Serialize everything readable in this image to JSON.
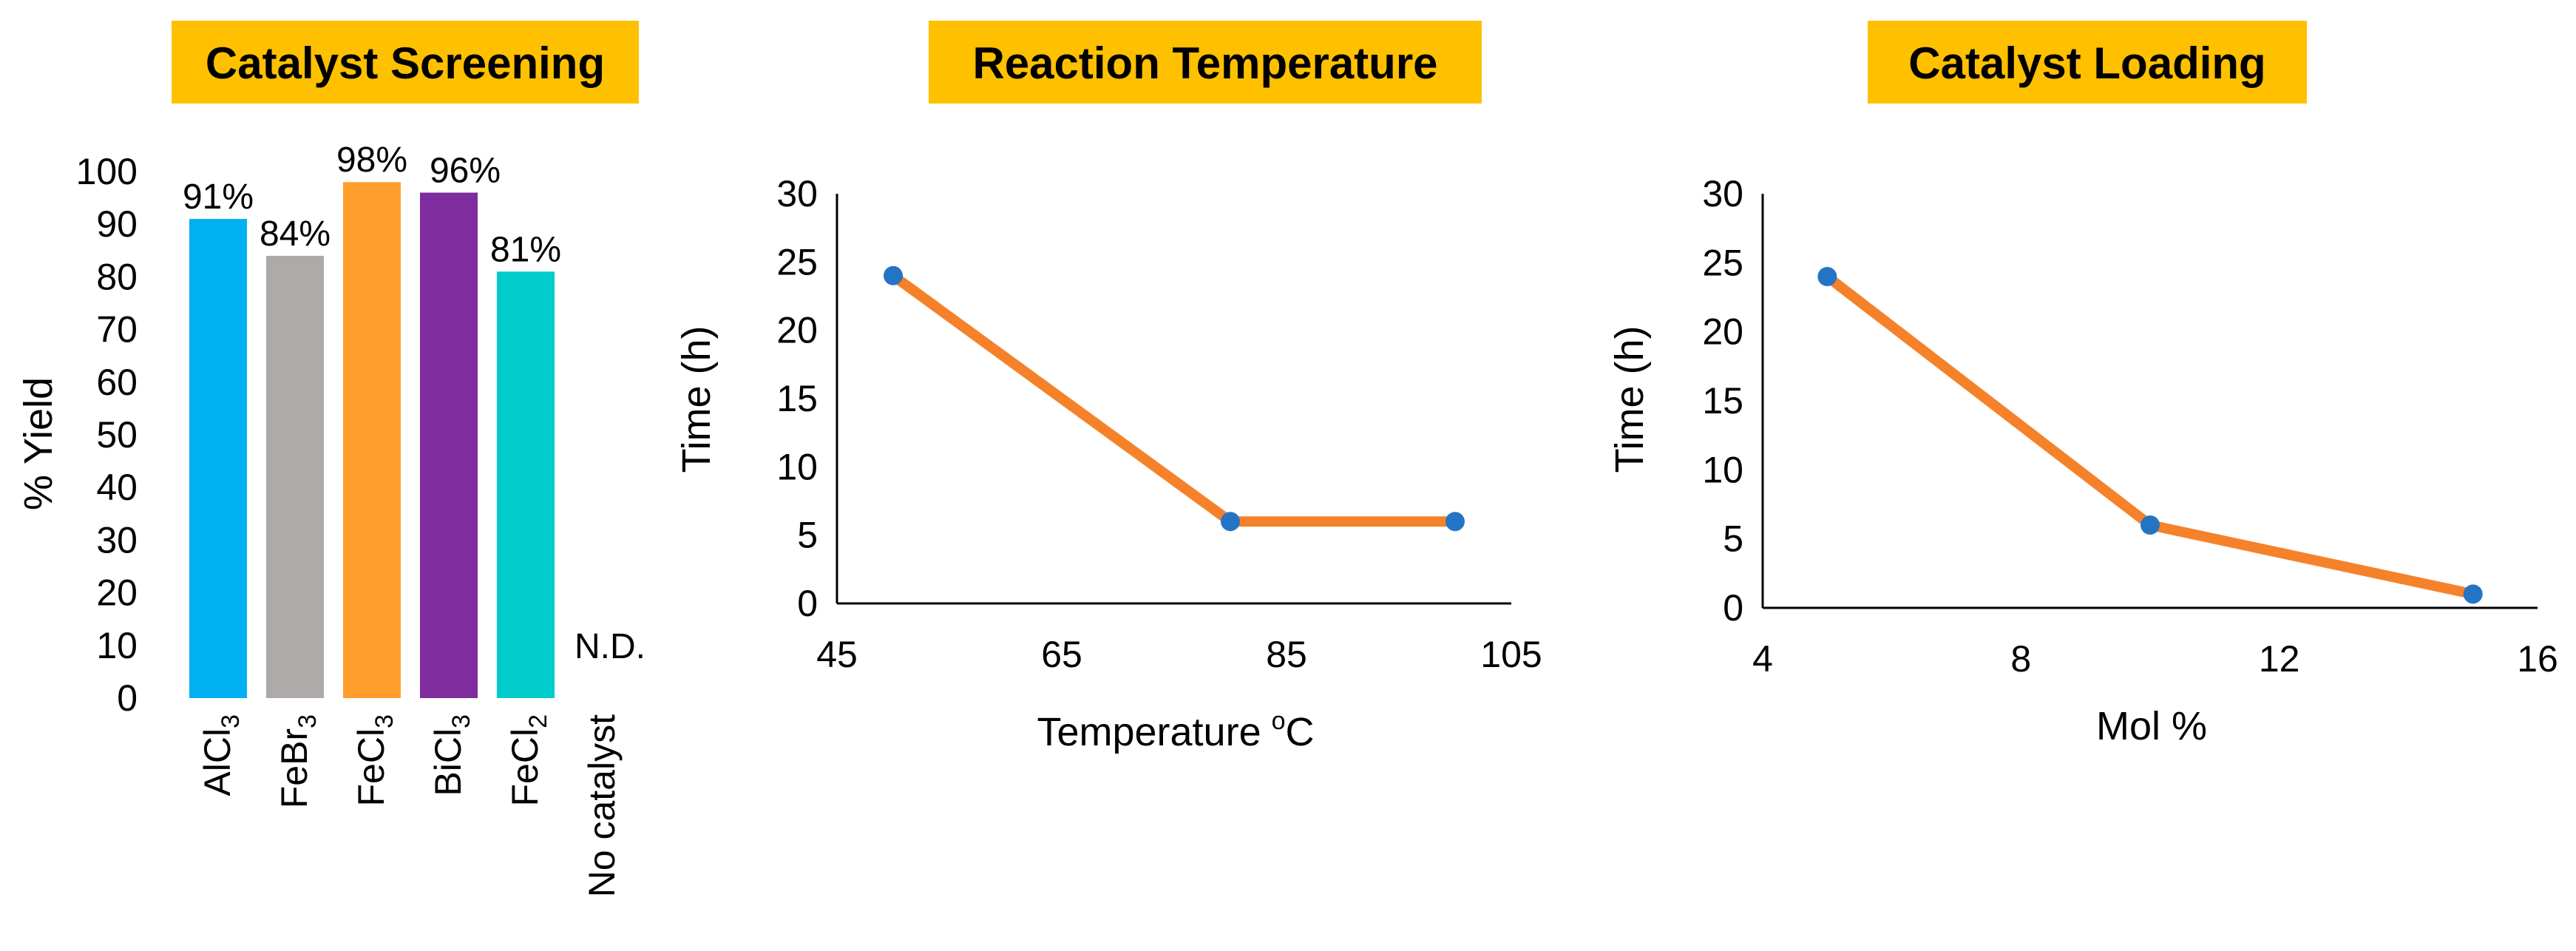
{
  "colors": {
    "title_box": "#FFC000",
    "line": "#F5822A",
    "marker": "#2474C6"
  },
  "chart_data": [
    {
      "type": "bar",
      "title": "Catalyst Screening",
      "xlabel": "",
      "ylabel": "% Yield",
      "ylim": [
        0,
        100
      ],
      "yticks": [
        "0",
        "10",
        "20",
        "30",
        "40",
        "50",
        "60",
        "70",
        "80",
        "90",
        "100"
      ],
      "categories": [
        {
          "base": "AlCl",
          "sub": "3"
        },
        {
          "base": "FeBr",
          "sub": "3"
        },
        {
          "base": "FeCl",
          "sub": "3"
        },
        {
          "base": "BiCl",
          "sub": "3"
        },
        {
          "base": "FeCl",
          "sub": "2"
        },
        {
          "base": "No catalyst",
          "sub": ""
        }
      ],
      "values": [
        91,
        84,
        98,
        96,
        81,
        0
      ],
      "data_labels": [
        "91%",
        "84%",
        "98%",
        "96%",
        "81%",
        "N.D."
      ],
      "bar_colors": [
        "#00B0F0",
        "#AEAAAA",
        "#FF9E2C",
        "#7F2C9E",
        "#00CCCC",
        "#FFFFFF"
      ],
      "grid": false
    },
    {
      "type": "line",
      "title": "Reaction Temperature",
      "xlabel": "Temperature",
      "xlabel_sup": "o",
      "xlabel_unit": "C",
      "ylabel": "Time (h)",
      "xlim": [
        45,
        105
      ],
      "ylim": [
        0,
        30
      ],
      "xticks": [
        "45",
        "65",
        "85",
        "105"
      ],
      "yticks": [
        "0",
        "5",
        "10",
        "15",
        "20",
        "25",
        "30"
      ],
      "x": [
        50,
        80,
        100
      ],
      "y": [
        24,
        6,
        6
      ],
      "grid": false
    },
    {
      "type": "line",
      "title": "Catalyst Loading",
      "xlabel": "Mol %",
      "ylabel": "Time (h)",
      "xlim": [
        4,
        16
      ],
      "ylim": [
        0,
        30
      ],
      "xticks": [
        "4",
        "8",
        "12",
        "16"
      ],
      "yticks": [
        "0",
        "5",
        "10",
        "15",
        "20",
        "25",
        "30"
      ],
      "x": [
        5,
        10,
        15
      ],
      "y": [
        24,
        6,
        1
      ],
      "grid": false
    }
  ]
}
